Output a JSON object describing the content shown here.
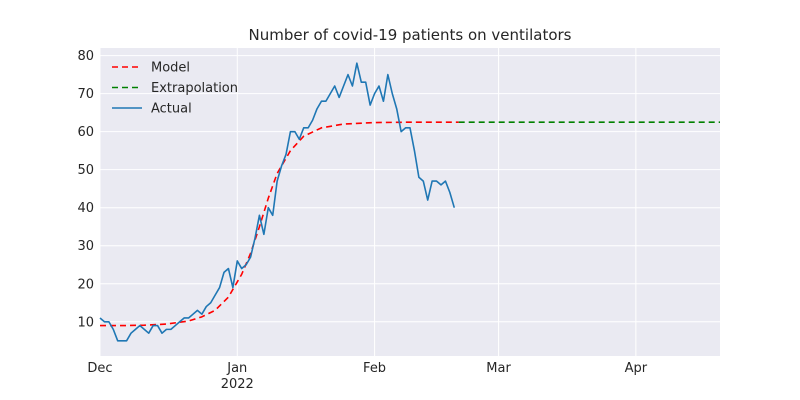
{
  "chart_data": {
    "type": "line",
    "title": "Number of covid-19 patients on ventilators",
    "xlabel": "",
    "ylabel": "",
    "x_axis": {
      "type": "date",
      "start": "2021-12-01",
      "end": "2022-04-20",
      "ticks": [
        {
          "date": "2021-12-01",
          "label": "Dec",
          "sublabel": ""
        },
        {
          "date": "2022-01-01",
          "label": "Jan",
          "sublabel": "2022"
        },
        {
          "date": "2022-02-01",
          "label": "Feb",
          "sublabel": ""
        },
        {
          "date": "2022-03-01",
          "label": "Mar",
          "sublabel": ""
        },
        {
          "date": "2022-04-01",
          "label": "Apr",
          "sublabel": ""
        }
      ]
    },
    "ylim": [
      1,
      82
    ],
    "yticks": [
      10,
      20,
      30,
      40,
      50,
      60,
      70,
      80
    ],
    "grid": true,
    "legend_position": "top-left",
    "colors": {
      "background": "#eaeaf2",
      "model": "#ff0000",
      "extrapolation": "#008000",
      "actual": "#1f77b4"
    },
    "series": [
      {
        "name": "Model",
        "style": "dashed",
        "points": [
          [
            "2021-12-01",
            9.0
          ],
          [
            "2021-12-06",
            9.0
          ],
          [
            "2021-12-11",
            9.1
          ],
          [
            "2021-12-16",
            9.4
          ],
          [
            "2021-12-21",
            10.2
          ],
          [
            "2021-12-24",
            11.3
          ],
          [
            "2021-12-27",
            13.0
          ],
          [
            "2021-12-30",
            16.5
          ],
          [
            "2022-01-02",
            22.5
          ],
          [
            "2022-01-04",
            28.0
          ],
          [
            "2022-01-06",
            35.0
          ],
          [
            "2022-01-08",
            42.5
          ],
          [
            "2022-01-10",
            49.0
          ],
          [
            "2022-01-13",
            55.0
          ],
          [
            "2022-01-16",
            58.8
          ],
          [
            "2022-01-20",
            61.0
          ],
          [
            "2022-01-25",
            62.0
          ],
          [
            "2022-02-01",
            62.4
          ],
          [
            "2022-02-10",
            62.5
          ],
          [
            "2022-02-20",
            62.5
          ]
        ]
      },
      {
        "name": "Extrapolation",
        "style": "dashed",
        "points": [
          [
            "2022-02-20",
            62.5
          ],
          [
            "2022-04-20",
            62.5
          ]
        ]
      },
      {
        "name": "Actual",
        "style": "solid",
        "points": [
          [
            "2021-12-01",
            11
          ],
          [
            "2021-12-02",
            10
          ],
          [
            "2021-12-03",
            10
          ],
          [
            "2021-12-04",
            8
          ],
          [
            "2021-12-05",
            5
          ],
          [
            "2021-12-06",
            5
          ],
          [
            "2021-12-07",
            5
          ],
          [
            "2021-12-08",
            7
          ],
          [
            "2021-12-09",
            8
          ],
          [
            "2021-12-10",
            9
          ],
          [
            "2021-12-11",
            8
          ],
          [
            "2021-12-12",
            7
          ],
          [
            "2021-12-13",
            9
          ],
          [
            "2021-12-14",
            9
          ],
          [
            "2021-12-15",
            7
          ],
          [
            "2021-12-16",
            8
          ],
          [
            "2021-12-17",
            8
          ],
          [
            "2021-12-18",
            9
          ],
          [
            "2021-12-19",
            10
          ],
          [
            "2021-12-20",
            11
          ],
          [
            "2021-12-21",
            11
          ],
          [
            "2021-12-22",
            12
          ],
          [
            "2021-12-23",
            13
          ],
          [
            "2021-12-24",
            12
          ],
          [
            "2021-12-25",
            14
          ],
          [
            "2021-12-26",
            15
          ],
          [
            "2021-12-27",
            17
          ],
          [
            "2021-12-28",
            19
          ],
          [
            "2021-12-29",
            23
          ],
          [
            "2021-12-30",
            24
          ],
          [
            "2021-12-31",
            19
          ],
          [
            "2022-01-01",
            26
          ],
          [
            "2022-01-02",
            24
          ],
          [
            "2022-01-03",
            25
          ],
          [
            "2022-01-04",
            27
          ],
          [
            "2022-01-05",
            32
          ],
          [
            "2022-01-06",
            38
          ],
          [
            "2022-01-07",
            33
          ],
          [
            "2022-01-08",
            40
          ],
          [
            "2022-01-09",
            38
          ],
          [
            "2022-01-10",
            47
          ],
          [
            "2022-01-11",
            51
          ],
          [
            "2022-01-12",
            54
          ],
          [
            "2022-01-13",
            60
          ],
          [
            "2022-01-14",
            60
          ],
          [
            "2022-01-15",
            58
          ],
          [
            "2022-01-16",
            61
          ],
          [
            "2022-01-17",
            61
          ],
          [
            "2022-01-18",
            63
          ],
          [
            "2022-01-19",
            66
          ],
          [
            "2022-01-20",
            68
          ],
          [
            "2022-01-21",
            68
          ],
          [
            "2022-01-22",
            70
          ],
          [
            "2022-01-23",
            72
          ],
          [
            "2022-01-24",
            69
          ],
          [
            "2022-01-25",
            72
          ],
          [
            "2022-01-26",
            75
          ],
          [
            "2022-01-27",
            72
          ],
          [
            "2022-01-28",
            78
          ],
          [
            "2022-01-29",
            73
          ],
          [
            "2022-01-30",
            73
          ],
          [
            "2022-01-31",
            67
          ],
          [
            "2022-02-01",
            70
          ],
          [
            "2022-02-02",
            72
          ],
          [
            "2022-02-03",
            68
          ],
          [
            "2022-02-04",
            75
          ],
          [
            "2022-02-05",
            70
          ],
          [
            "2022-02-06",
            66
          ],
          [
            "2022-02-07",
            60
          ],
          [
            "2022-02-08",
            61
          ],
          [
            "2022-02-09",
            61
          ],
          [
            "2022-02-10",
            55
          ],
          [
            "2022-02-11",
            48
          ],
          [
            "2022-02-12",
            47
          ],
          [
            "2022-02-13",
            42
          ],
          [
            "2022-02-14",
            47
          ],
          [
            "2022-02-15",
            47
          ],
          [
            "2022-02-16",
            46
          ],
          [
            "2022-02-17",
            47
          ],
          [
            "2022-02-18",
            44
          ],
          [
            "2022-02-19",
            40
          ]
        ]
      }
    ]
  }
}
